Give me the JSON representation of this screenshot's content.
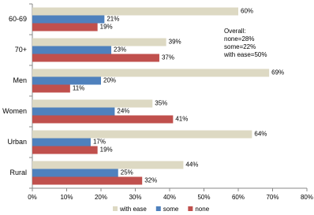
{
  "chart_data": {
    "type": "bar",
    "orientation": "horizontal",
    "categories": [
      "60-69",
      "70+",
      "Men",
      "Women",
      "Urban",
      "Rural"
    ],
    "series": [
      {
        "name": "with ease",
        "color": "#ddd9c3",
        "values": [
          60,
          39,
          69,
          35,
          64,
          44
        ],
        "value_labels": [
          "60%",
          "39%",
          "69%",
          "35%",
          "64%",
          "44%"
        ]
      },
      {
        "name": "some",
        "color": "#4f81bd",
        "values": [
          21,
          23,
          20,
          24,
          17,
          25
        ],
        "value_labels": [
          "21%",
          "23%",
          "20%",
          "24%",
          "17%",
          "25%"
        ]
      },
      {
        "name": "none",
        "color": "#c0504d",
        "values": [
          19,
          37,
          11,
          41,
          19,
          32
        ],
        "value_labels": [
          "19%",
          "37%",
          "11%",
          "41%",
          "19%",
          "32%"
        ]
      }
    ],
    "xlim": [
      0,
      80
    ],
    "xticks": [
      {
        "value": 0,
        "label": "0%"
      },
      {
        "value": 10,
        "label": "10%"
      },
      {
        "value": 20,
        "label": "20%"
      },
      {
        "value": 30,
        "label": "30%"
      },
      {
        "value": 40,
        "label": "40%"
      },
      {
        "value": 50,
        "label": "50%"
      },
      {
        "value": 60,
        "label": "60%"
      },
      {
        "value": 70,
        "label": "70%"
      },
      {
        "value": 80,
        "label": "80%"
      }
    ],
    "annotation": [
      "Overall:",
      "none=28%",
      "some=22%",
      "with ease=50%"
    ],
    "legend": "bottom",
    "grid": false
  }
}
